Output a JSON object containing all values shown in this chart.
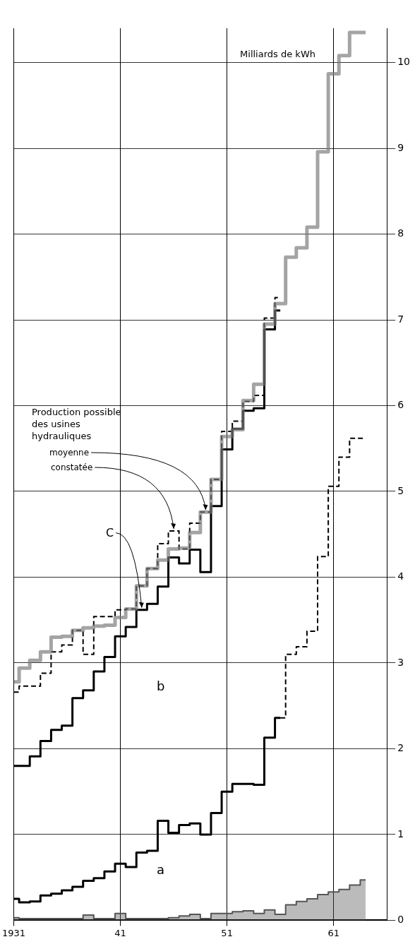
{
  "chart_data": {
    "type": "step",
    "ylabel": "Milliards de kWh",
    "x": [
      1931,
      1932,
      1933,
      1934,
      1935,
      1936,
      1937,
      1938,
      1939,
      1940,
      1941,
      1942,
      1943,
      1944,
      1945,
      1946,
      1947,
      1948,
      1949,
      1950,
      1951,
      1952,
      1953,
      1954,
      1955,
      1956,
      1957,
      1958,
      1959,
      1960,
      1961,
      1962,
      1963,
      1964
    ],
    "xlim": [
      1931,
      1966
    ],
    "xticks": [
      {
        "value": 1931,
        "label": "1931"
      },
      {
        "value": 1941,
        "label": "41"
      },
      {
        "value": 1951,
        "label": "51"
      },
      {
        "value": 1961,
        "label": "61"
      }
    ],
    "ylim": [
      0,
      10.4
    ],
    "yticks": [
      0,
      1,
      2,
      3,
      4,
      5,
      6,
      7,
      8,
      9,
      10
    ],
    "grid": true,
    "legend": false,
    "series": [
      {
        "color": "#777777",
        "values": [
          2.78,
          2.94,
          3.03,
          3.13,
          3.3,
          3.31,
          3.38,
          3.41,
          3.43,
          3.44,
          3.53,
          3.63,
          3.9,
          4.1,
          4.2,
          4.33,
          4.34,
          4.52,
          4.76,
          5.14,
          5.64,
          5.72,
          6.06,
          6.25,
          6.95,
          7.19,
          7.73,
          7.84,
          8.08,
          8.96,
          9.87,
          10.08,
          10.35,
          10.35
        ]
      },
      {
        "color": "#000000",
        "line_style": "dashed",
        "values": [
          2.66,
          2.73,
          2.73,
          2.88,
          3.13,
          3.21,
          3.38,
          3.1,
          3.54,
          3.54,
          3.62,
          3.63,
          3.9,
          4.1,
          4.39,
          4.54,
          4.33,
          4.63,
          4.76,
          5.14,
          5.7,
          5.82,
          6.05,
          6.12,
          7.02,
          7.26,
          null,
          null,
          null,
          null,
          null,
          null,
          null,
          null
        ]
      },
      {
        "color": "#000000",
        "values": [
          1.8,
          1.8,
          1.91,
          2.09,
          2.22,
          2.27,
          2.59,
          2.68,
          2.9,
          3.07,
          3.31,
          3.42,
          3.62,
          3.69,
          3.89,
          4.23,
          4.16,
          4.32,
          4.06,
          4.83,
          5.49,
          5.73,
          5.94,
          5.97,
          6.89,
          7.11,
          null,
          null,
          null,
          null,
          null,
          null,
          null,
          null
        ]
      },
      {
        "color": "#000000",
        "values": [
          0.25,
          0.21,
          0.22,
          0.29,
          0.31,
          0.35,
          0.39,
          0.46,
          0.49,
          0.57,
          0.66,
          0.62,
          0.79,
          0.81,
          1.16,
          1.02,
          1.11,
          1.13,
          1.0,
          1.25,
          1.5,
          1.59,
          1.59,
          1.58,
          2.13,
          2.36,
          null,
          null,
          null,
          null,
          null,
          null,
          null,
          null
        ]
      },
      {
        "color": "#000000",
        "line_style": "dashed",
        "values": [
          null,
          null,
          null,
          null,
          null,
          null,
          null,
          null,
          null,
          null,
          null,
          null,
          null,
          null,
          null,
          null,
          null,
          null,
          null,
          null,
          null,
          null,
          null,
          null,
          null,
          2.36,
          3.1,
          3.19,
          3.37,
          4.24,
          5.06,
          5.4,
          5.62,
          5.62
        ]
      },
      {
        "type": "area",
        "color": "#555555",
        "values": [
          0.03,
          0.02,
          0.02,
          0.02,
          0.02,
          0.02,
          0.02,
          0.06,
          0.02,
          0.02,
          0.08,
          0.02,
          0.02,
          0.02,
          0.02,
          0.03,
          0.05,
          0.07,
          0.02,
          0.08,
          0.08,
          0.1,
          0.11,
          0.08,
          0.12,
          0.07,
          0.18,
          0.22,
          0.25,
          0.3,
          0.33,
          0.36,
          0.41,
          0.47
        ]
      }
    ],
    "annotations": [
      "Production possible des usines hydrauliques",
      {
        "text": "moyenne",
        "x": 1949,
        "y": 4.76
      },
      {
        "text": "constatée",
        "x": 1946,
        "y": 4.54
      },
      {
        "text": "C",
        "x": 1943,
        "y": 3.62
      },
      "b",
      "a"
    ]
  }
}
